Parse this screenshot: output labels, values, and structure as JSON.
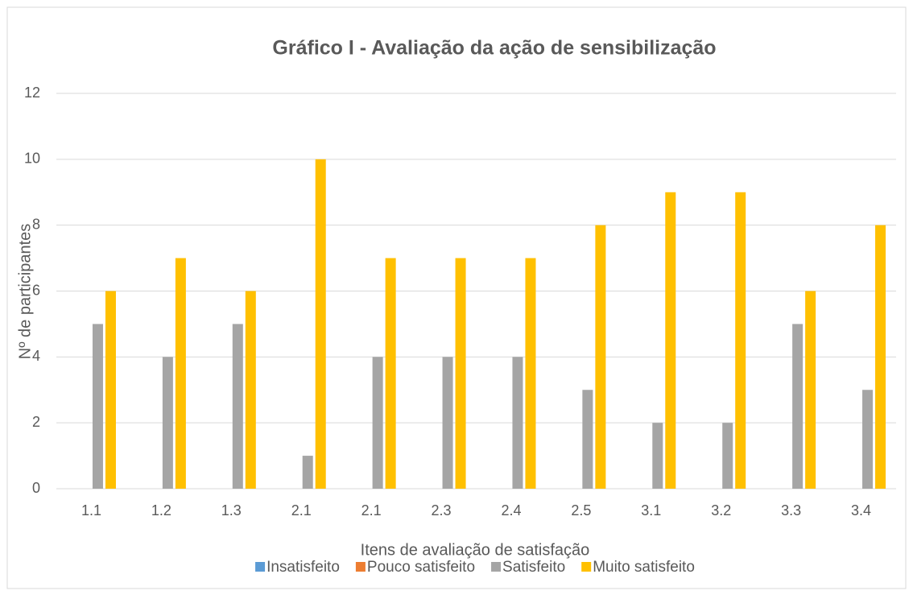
{
  "chart_data": {
    "type": "bar",
    "title": "Gráfico I -  Avaliação da ação de sensibilização",
    "x_label": "Itens de avaliação de satisfação",
    "y_label": "Nº de participantes",
    "categories": [
      "1.1",
      "1.2",
      "1.3",
      "2.1",
      "2.1",
      "2.3",
      "2.4",
      "2.5",
      "3.1",
      "3.2",
      "3.3",
      "3.4"
    ],
    "series": [
      {
        "name": "Insatisfeito",
        "color": "#5b9bd5",
        "values": [
          0,
          0,
          0,
          0,
          0,
          0,
          0,
          0,
          0,
          0,
          0,
          0
        ]
      },
      {
        "name": "Pouco satisfeito",
        "color": "#ed7d31",
        "values": [
          0,
          0,
          0,
          0,
          0,
          0,
          0,
          0,
          0,
          0,
          0,
          0
        ]
      },
      {
        "name": "Satisfeito",
        "color": "#a5a5a5",
        "values": [
          5,
          4,
          5,
          1,
          4,
          4,
          4,
          3,
          2,
          2,
          5,
          3
        ]
      },
      {
        "name": "Muito satisfeito",
        "color": "#ffc000",
        "values": [
          6,
          7,
          6,
          10,
          7,
          7,
          7,
          8,
          9,
          9,
          6,
          8
        ]
      }
    ],
    "ylim": [
      0,
      12
    ],
    "yticks": [
      0,
      2,
      4,
      6,
      8,
      10,
      12
    ],
    "grid": true,
    "legend": "bottom"
  }
}
